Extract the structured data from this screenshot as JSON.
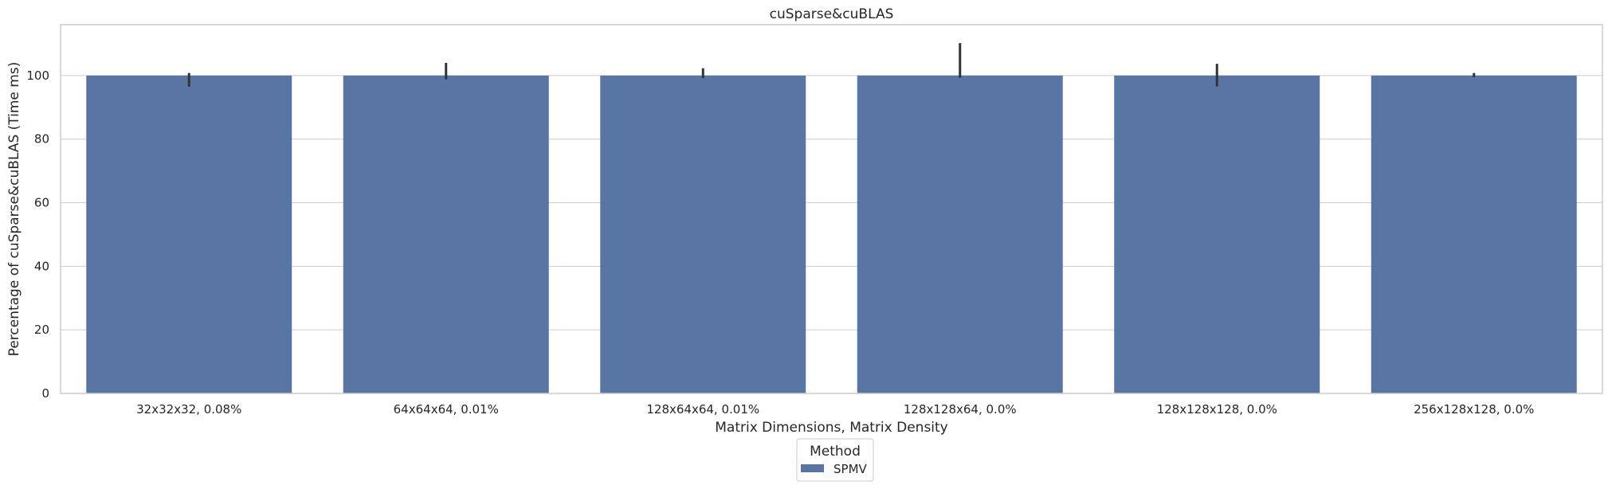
{
  "chart_data": {
    "type": "bar",
    "title": "cuSparse&cuBLAS",
    "xlabel": "Matrix Dimensions, Matrix Density",
    "ylabel": "Percentage of cuSparse&cuBLAS (Time ms)",
    "categories": [
      "32x32x32, 0.08%",
      "64x64x64, 0.01%",
      "128x64x64, 0.01%",
      "128x128x64, 0.0%",
      "128x128x128, 0.0%",
      "256x128x128, 0.0%"
    ],
    "series": [
      {
        "name": "SPMV",
        "values": [
          100,
          100,
          100,
          100,
          100,
          100
        ],
        "error_low": [
          96.5,
          98.8,
          99.2,
          99.3,
          96.6,
          99.5
        ],
        "error_high": [
          100.8,
          104.0,
          102.3,
          110.2,
          103.7,
          100.8
        ]
      }
    ],
    "ylim": [
      0,
      116
    ],
    "yticks": [
      0,
      20,
      40,
      60,
      80,
      100
    ],
    "grid": true,
    "legend": {
      "title": "Method",
      "placement": "bottom-center"
    },
    "colors": {
      "bar": "#5975a4",
      "error": "#333333",
      "grid": "#cccccc",
      "spine": "#cccccc"
    }
  }
}
